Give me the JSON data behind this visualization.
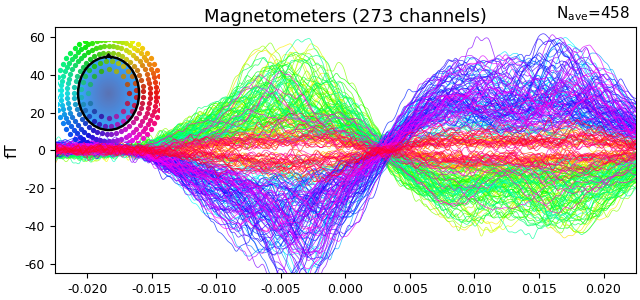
{
  "title": "Magnetometers (273 channels)",
  "ylabel": "fT",
  "xlim": [
    -0.0225,
    0.0225
  ],
  "ylim": [
    -65,
    65
  ],
  "xticks": [
    -0.02,
    -0.015,
    -0.01,
    -0.005,
    0.0,
    0.005,
    0.01,
    0.015,
    0.02
  ],
  "yticks": [
    -60,
    -40,
    -20,
    0,
    20,
    40,
    60
  ],
  "n_channels": 273,
  "seed": 42,
  "background_color": "#ffffff",
  "title_fontsize": 13,
  "nave_fontsize": 11,
  "ylabel_fontsize": 11,
  "tick_fontsize": 9,
  "linewidth": 0.55,
  "alpha": 0.75
}
